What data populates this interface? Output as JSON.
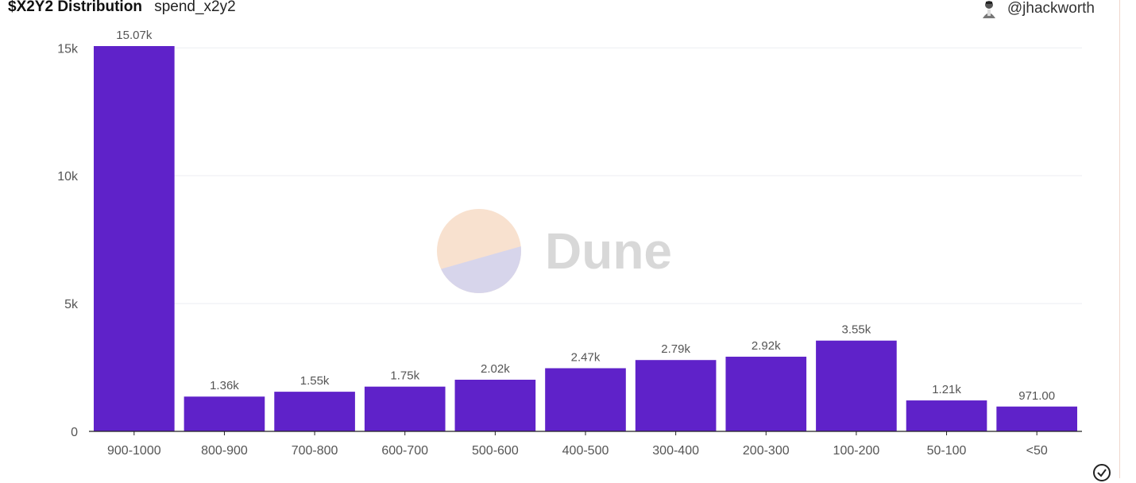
{
  "header": {
    "title": "$X2Y2 Distribution",
    "query_name": "spend_x2y2",
    "author": "@jhackworth"
  },
  "watermark": "Dune",
  "colors": {
    "bar": "#5f22c9",
    "grid": "#eceef2",
    "axis": "#222222",
    "text": "#555555"
  },
  "chart_data": {
    "type": "bar",
    "categories": [
      "900-1000",
      "800-900",
      "700-800",
      "600-700",
      "500-600",
      "400-500",
      "300-400",
      "200-300",
      "100-200",
      "50-100",
      "<50"
    ],
    "values": [
      15070,
      1360,
      1550,
      1750,
      2020,
      2470,
      2790,
      2920,
      3550,
      1210,
      971
    ],
    "data_labels": [
      "15.07k",
      "1.36k",
      "1.55k",
      "1.75k",
      "2.02k",
      "2.47k",
      "2.79k",
      "2.92k",
      "3.55k",
      "1.21k",
      "971.00"
    ],
    "yticks": [
      0,
      5000,
      10000,
      15000
    ],
    "ytick_labels": [
      "0",
      "5k",
      "10k",
      "15k"
    ],
    "ylim": [
      0,
      15070
    ],
    "grid": true,
    "legend": "none"
  }
}
